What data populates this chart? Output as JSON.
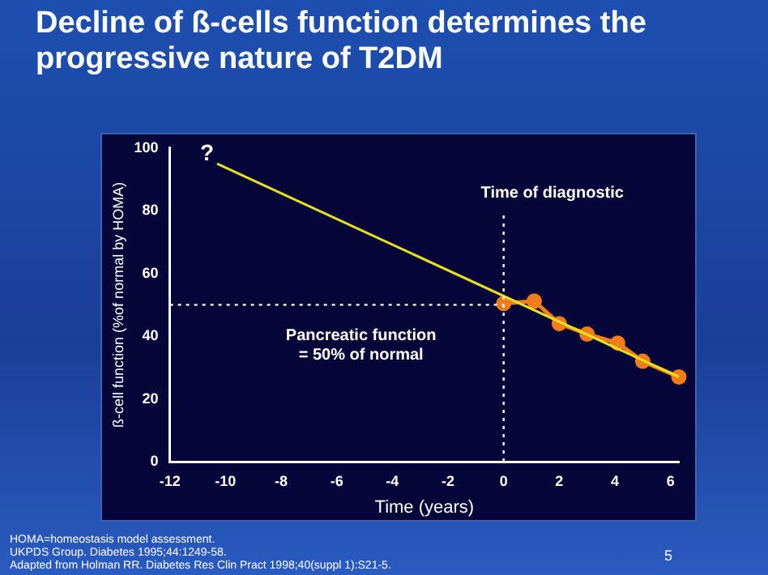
{
  "chart_data": {
    "type": "line",
    "title": "Decline of ß-cells function determines the progressive nature of T2DM",
    "xlabel": "Time (years)",
    "ylabel": "ß-cell function (%of normal by HOMA)",
    "series": [
      {
        "color": "#e6e01e",
        "x": [
          -10.3,
          6.3
        ],
        "values": [
          95,
          27
        ],
        "marker": "none"
      },
      {
        "color": "#f07d1a",
        "x": [
          0,
          1.1,
          2,
          3,
          4.1,
          5,
          6.3
        ],
        "values": [
          50.4,
          51.2,
          44,
          40.7,
          37.8,
          32,
          27
        ],
        "marker": "circle"
      }
    ],
    "xlim": [
      -12,
      6.3
    ],
    "xticks": [
      -12,
      -10,
      -8,
      -6,
      -4,
      -2,
      0,
      2,
      4,
      6
    ],
    "ylim": [
      0,
      100
    ],
    "yticks": [
      0,
      20,
      40,
      60,
      80,
      100
    ],
    "grid": false,
    "legend": false,
    "line_style": "solid",
    "ref_lines": [
      {
        "axis": "x",
        "value": 0,
        "label": "Time of diagnostic",
        "line_style": "dotted",
        "color": "#ffffff"
      },
      {
        "axis": "y",
        "value": 50,
        "label": "Pancreatic function\n= 50% of normal",
        "line_style": "dotted",
        "color": "#ffffff"
      }
    ],
    "annotations": [
      "?",
      "HOMA=homeostasis model assessment.",
      "UKPDS Group. Diabetes 1995;44:1249-58.",
      "Adapted from Holman RR. Diabetes Res Clin Pract 1998;40(suppl 1):S21-5.",
      "5"
    ]
  }
}
